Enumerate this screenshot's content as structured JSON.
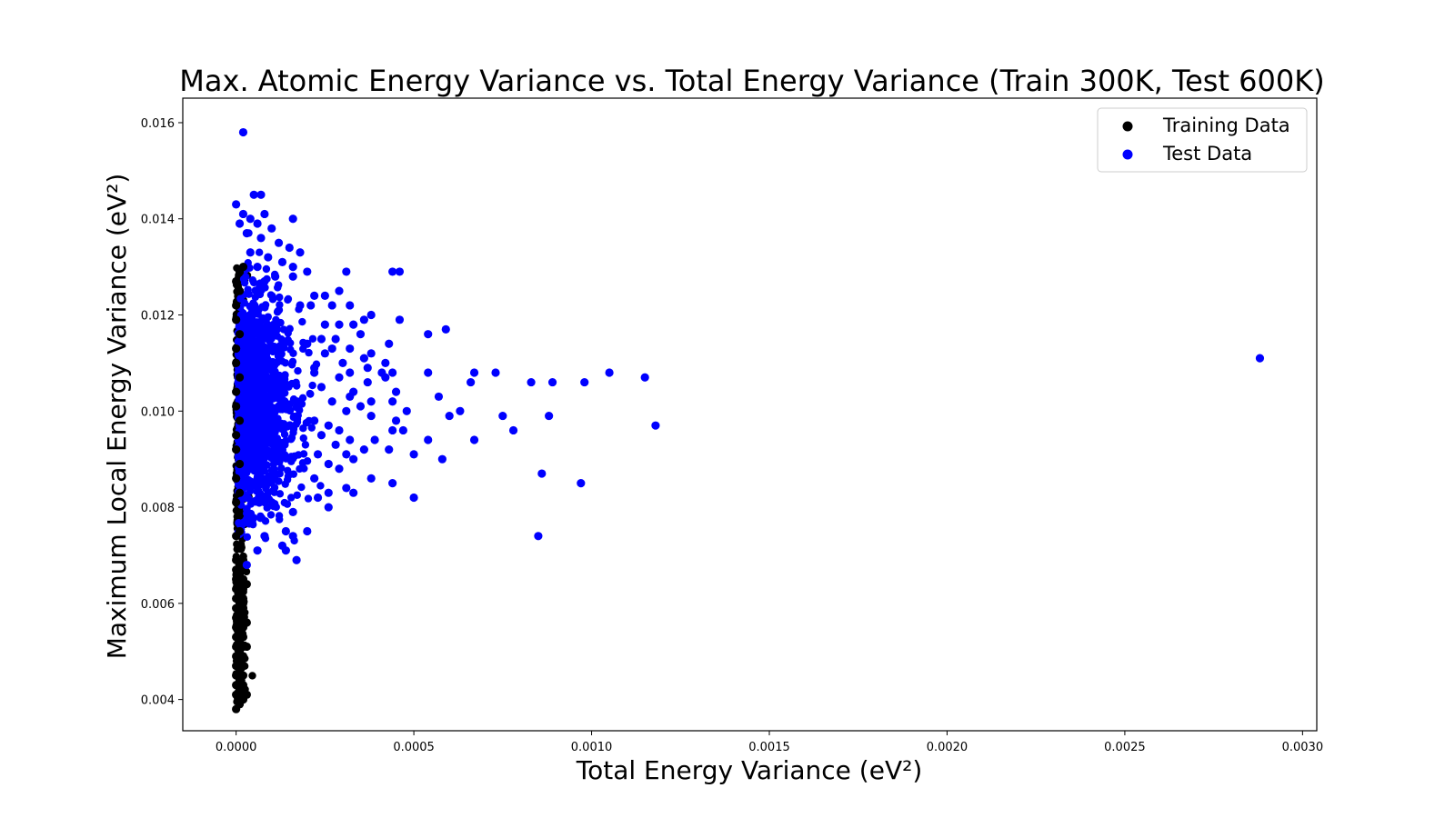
{
  "chart_data": {
    "type": "scatter",
    "title": "Max. Atomic Energy Variance vs. Total Energy Variance (Train 300K, Test 600K)",
    "xlabel": "Total Energy Variance (eV²)",
    "ylabel": "Maximum Local Energy Variance (eV²)",
    "xlim": [
      -0.00015,
      0.00304
    ],
    "ylim": [
      0.00335,
      0.01651
    ],
    "xticks": [
      0.0,
      0.0005,
      0.001,
      0.0015,
      0.002,
      0.0025,
      0.003
    ],
    "xtick_labels": [
      "0.0000",
      "0.0005",
      "0.0010",
      "0.0015",
      "0.0020",
      "0.0025",
      "0.0030"
    ],
    "yticks": [
      0.004,
      0.006,
      0.008,
      0.01,
      0.012,
      0.014,
      0.016
    ],
    "ytick_labels": [
      "0.004",
      "0.006",
      "0.008",
      "0.010",
      "0.012",
      "0.014",
      "0.016"
    ],
    "grid": false,
    "legend": "top-right",
    "series": [
      {
        "name": "Training Data",
        "color": "#000000",
        "points": [
          [
            0.0,
            0.0038
          ],
          [
            1e-05,
            0.0039
          ],
          [
            2e-05,
            0.004
          ],
          [
            0.0,
            0.0041
          ],
          [
            2e-05,
            0.0041
          ],
          [
            3e-05,
            0.0041
          ],
          [
            1e-05,
            0.0042
          ],
          [
            0.0,
            0.0043
          ],
          [
            2e-05,
            0.0043
          ],
          [
            1e-05,
            0.0044
          ],
          [
            0.0,
            0.0045
          ],
          [
            2e-05,
            0.0045
          ],
          [
            1e-05,
            0.0046
          ],
          [
            0.0,
            0.0047
          ],
          [
            2e-05,
            0.0047
          ],
          [
            1e-05,
            0.0048
          ],
          [
            0.0,
            0.0049
          ],
          [
            2e-05,
            0.0049
          ],
          [
            1e-05,
            0.005
          ],
          [
            0.0,
            0.0051
          ],
          [
            2e-05,
            0.0051
          ],
          [
            3e-05,
            0.0051
          ],
          [
            1e-05,
            0.0052
          ],
          [
            0.0,
            0.0053
          ],
          [
            2e-05,
            0.0053
          ],
          [
            1e-05,
            0.0054
          ],
          [
            0.0,
            0.0055
          ],
          [
            2e-05,
            0.0055
          ],
          [
            3e-05,
            0.0056
          ],
          [
            1e-05,
            0.0056
          ],
          [
            0.0,
            0.0057
          ],
          [
            2e-05,
            0.0057
          ],
          [
            1e-05,
            0.0058
          ],
          [
            0.0,
            0.0059
          ],
          [
            2e-05,
            0.0059
          ],
          [
            1e-05,
            0.006
          ],
          [
            0.0,
            0.0061
          ],
          [
            2e-05,
            0.0061
          ],
          [
            1e-05,
            0.0062
          ],
          [
            0.0,
            0.0063
          ],
          [
            2e-05,
            0.0063
          ],
          [
            3e-05,
            0.0064
          ],
          [
            1e-05,
            0.0064
          ],
          [
            0.0,
            0.0065
          ],
          [
            2e-05,
            0.0065
          ],
          [
            1e-05,
            0.0066
          ],
          [
            0.0,
            0.0067
          ],
          [
            2e-05,
            0.0067
          ],
          [
            1e-05,
            0.0068
          ],
          [
            0.0,
            0.0069
          ],
          [
            2e-05,
            0.0069
          ],
          [
            0.0,
            0.0074
          ],
          [
            1e-05,
            0.0075
          ],
          [
            0.0,
            0.0081
          ],
          [
            1e-05,
            0.0083
          ],
          [
            0.0,
            0.0086
          ],
          [
            1e-05,
            0.0089
          ],
          [
            0.0,
            0.0092
          ],
          [
            0.0,
            0.0095
          ],
          [
            1e-05,
            0.0098
          ],
          [
            0.0,
            0.0101
          ],
          [
            0.0,
            0.0104
          ],
          [
            1e-05,
            0.0107
          ],
          [
            0.0,
            0.011
          ],
          [
            0.0,
            0.0113
          ],
          [
            1e-05,
            0.0116
          ],
          [
            0.0,
            0.0119
          ],
          [
            0.0,
            0.0122
          ],
          [
            1e-05,
            0.0125
          ],
          [
            0.0,
            0.0127
          ],
          [
            1e-05,
            0.0129
          ],
          [
            2e-05,
            0.013
          ]
        ]
      },
      {
        "name": "Test Data",
        "color": "#0000ff",
        "points": [
          [
            2e-05,
            0.0158
          ],
          [
            5e-05,
            0.0145
          ],
          [
            7e-05,
            0.0145
          ],
          [
            0.0,
            0.0143
          ],
          [
            2e-05,
            0.0141
          ],
          [
            8e-05,
            0.0141
          ],
          [
            4e-05,
            0.014
          ],
          [
            0.00016,
            0.014
          ],
          [
            1e-05,
            0.0139
          ],
          [
            6e-05,
            0.0139
          ],
          [
            0.0001,
            0.0138
          ],
          [
            3e-05,
            0.0137
          ],
          [
            7e-05,
            0.0136
          ],
          [
            0.00012,
            0.0135
          ],
          [
            0.00015,
            0.0134
          ],
          [
            4e-05,
            0.0133
          ],
          [
            9e-05,
            0.0132
          ],
          [
            0.00018,
            0.0133
          ],
          [
            0.00013,
            0.0131
          ],
          [
            6e-05,
            0.013
          ],
          [
            0.00016,
            0.013
          ],
          [
            0.00031,
            0.0129
          ],
          [
            0.00044,
            0.0129
          ],
          [
            0.00046,
            0.0129
          ],
          [
            0.0002,
            0.0129
          ],
          [
            0.00011,
            0.0128
          ],
          [
            0.00016,
            0.0128
          ],
          [
            8e-05,
            0.0127
          ],
          [
            0.00029,
            0.0125
          ],
          [
            0.00022,
            0.0124
          ],
          [
            0.00025,
            0.0124
          ],
          [
            0.00021,
            0.0122
          ],
          [
            0.00018,
            0.0122
          ],
          [
            0.00032,
            0.0122
          ],
          [
            0.00027,
            0.0122
          ],
          [
            0.00038,
            0.012
          ],
          [
            0.00036,
            0.0119
          ],
          [
            0.00046,
            0.0119
          ],
          [
            0.00025,
            0.0118
          ],
          [
            0.00033,
            0.0118
          ],
          [
            0.00029,
            0.0118
          ],
          [
            0.00059,
            0.0117
          ],
          [
            0.00054,
            0.0116
          ],
          [
            0.00035,
            0.0116
          ],
          [
            0.00024,
            0.0115
          ],
          [
            0.00028,
            0.0115
          ],
          [
            0.00043,
            0.0114
          ],
          [
            0.0002,
            0.0114
          ],
          [
            0.00027,
            0.0113
          ],
          [
            0.00032,
            0.0113
          ],
          [
            0.00038,
            0.0112
          ],
          [
            0.00025,
            0.0112
          ],
          [
            0.00036,
            0.0111
          ],
          [
            0.0003,
            0.011
          ],
          [
            0.00042,
            0.011
          ],
          [
            0.00037,
            0.0109
          ],
          [
            0.00022,
            0.0109
          ],
          [
            0.00032,
            0.0108
          ],
          [
            0.00054,
            0.0108
          ],
          [
            0.00041,
            0.0108
          ],
          [
            0.00044,
            0.0108
          ],
          [
            0.00067,
            0.0108
          ],
          [
            0.00073,
            0.0108
          ],
          [
            0.00105,
            0.0108
          ],
          [
            0.00022,
            0.0108
          ],
          [
            0.00029,
            0.0107
          ],
          [
            0.00042,
            0.0107
          ],
          [
            0.00115,
            0.0107
          ],
          [
            0.00037,
            0.0106
          ],
          [
            0.00083,
            0.0106
          ],
          [
            0.00066,
            0.0106
          ],
          [
            0.00089,
            0.0106
          ],
          [
            0.00098,
            0.0106
          ],
          [
            0.00024,
            0.0105
          ],
          [
            0.00033,
            0.0104
          ],
          [
            0.00045,
            0.0104
          ],
          [
            0.00057,
            0.0103
          ],
          [
            0.00032,
            0.0103
          ],
          [
            0.00038,
            0.0102
          ],
          [
            0.00027,
            0.0102
          ],
          [
            0.00044,
            0.0102
          ],
          [
            0.00035,
            0.0101
          ],
          [
            0.00031,
            0.01
          ],
          [
            0.00063,
            0.01
          ],
          [
            0.00048,
            0.01
          ],
          [
            0.0006,
            0.0099
          ],
          [
            0.00088,
            0.0099
          ],
          [
            0.00075,
            0.0099
          ],
          [
            0.00038,
            0.0099
          ],
          [
            0.00045,
            0.0098
          ],
          [
            0.00022,
            0.0098
          ],
          [
            0.00026,
            0.0097
          ],
          [
            0.00118,
            0.0097
          ],
          [
            0.00029,
            0.0096
          ],
          [
            0.00047,
            0.0096
          ],
          [
            0.00044,
            0.0096
          ],
          [
            0.00078,
            0.0096
          ],
          [
            0.00024,
            0.0095
          ],
          [
            0.00032,
            0.0094
          ],
          [
            0.00054,
            0.0094
          ],
          [
            0.00067,
            0.0094
          ],
          [
            0.00039,
            0.0094
          ],
          [
            0.00028,
            0.0093
          ],
          [
            0.00043,
            0.0092
          ],
          [
            0.00036,
            0.0092
          ],
          [
            0.0005,
            0.0091
          ],
          [
            0.00031,
            0.0091
          ],
          [
            0.00023,
            0.0091
          ],
          [
            0.00033,
            0.009
          ],
          [
            0.00058,
            0.009
          ],
          [
            0.00026,
            0.0089
          ],
          [
            0.00029,
            0.0088
          ],
          [
            0.00086,
            0.0087
          ],
          [
            0.00038,
            0.0086
          ],
          [
            0.00022,
            0.0086
          ],
          [
            0.00044,
            0.0085
          ],
          [
            0.00097,
            0.0085
          ],
          [
            0.00031,
            0.0084
          ],
          [
            0.00026,
            0.0083
          ],
          [
            0.00033,
            0.0083
          ],
          [
            0.0005,
            0.0082
          ],
          [
            0.00023,
            0.0082
          ],
          [
            0.00026,
            0.008
          ],
          [
            0.00016,
            0.0079
          ],
          [
            0.00085,
            0.0074
          ],
          [
            0.00014,
            0.0075
          ],
          [
            0.0002,
            0.0075
          ],
          [
            0.00016,
            0.0074
          ],
          [
            8e-05,
            0.0074
          ],
          [
            0.00013,
            0.0072
          ],
          [
            0.00014,
            0.0071
          ],
          [
            6e-05,
            0.0071
          ],
          [
            0.00017,
            0.0069
          ],
          [
            3e-05,
            0.0068
          ],
          [
            0.00288,
            0.0111
          ]
        ]
      }
    ]
  }
}
